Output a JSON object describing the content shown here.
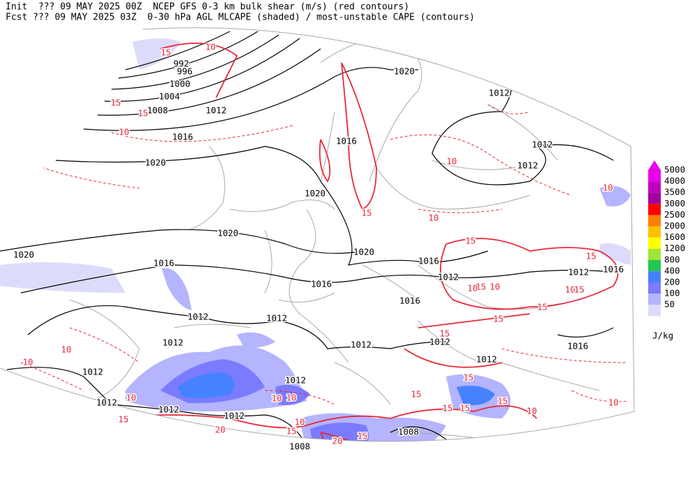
{
  "header": {
    "line1": "Init  ??? 09 MAY 2025 00Z  NCEP GFS 0-3 km bulk shear (m/s) (red contours)",
    "line2": "Fcst ??? 09 MAY 2025 03Z  0-30 hPa AGL MLCAPE (shaded) / most-unstable CAPE (contours)"
  },
  "legend": {
    "unit": "J/kg",
    "items": [
      {
        "value": 5000,
        "color": "#e800e8"
      },
      {
        "value": 4000,
        "color": "#c000c0"
      },
      {
        "value": 3500,
        "color": "#a000a0"
      },
      {
        "value": 3000,
        "color": "#ff0000"
      },
      {
        "value": 2500,
        "color": "#ff8000"
      },
      {
        "value": 2000,
        "color": "#ffc000"
      },
      {
        "value": 1600,
        "color": "#ffff00"
      },
      {
        "value": 1200,
        "color": "#a0e632"
      },
      {
        "value": 800,
        "color": "#20c850"
      },
      {
        "value": 400,
        "color": "#4682ff"
      },
      {
        "value": 200,
        "color": "#7b7bff"
      },
      {
        "value": 100,
        "color": "#b4b4ff"
      },
      {
        "value": 50,
        "color": "#dcdcfa"
      }
    ]
  },
  "contours": {
    "pressure": [
      992,
      996,
      1000,
      1004,
      1008,
      1012,
      1016,
      1020,
      1020,
      1012,
      1012,
      1012,
      1016,
      1020,
      1020,
      1020,
      1016,
      1020,
      1016,
      1016,
      1012,
      1012,
      1016,
      1016,
      1012,
      1012,
      1012,
      1012,
      1012,
      1012,
      1016,
      1012,
      1012,
      1012,
      1012,
      1012,
      1008,
      1008
    ],
    "shear": [
      15,
      10,
      15,
      15,
      10,
      15,
      10,
      10,
      10,
      15,
      15,
      10,
      15,
      15,
      10,
      10,
      15,
      15,
      15,
      10,
      10,
      10,
      10,
      10,
      15,
      15,
      15,
      15,
      10,
      15,
      15,
      15,
      20,
      20,
      10,
      15,
      10
    ]
  }
}
